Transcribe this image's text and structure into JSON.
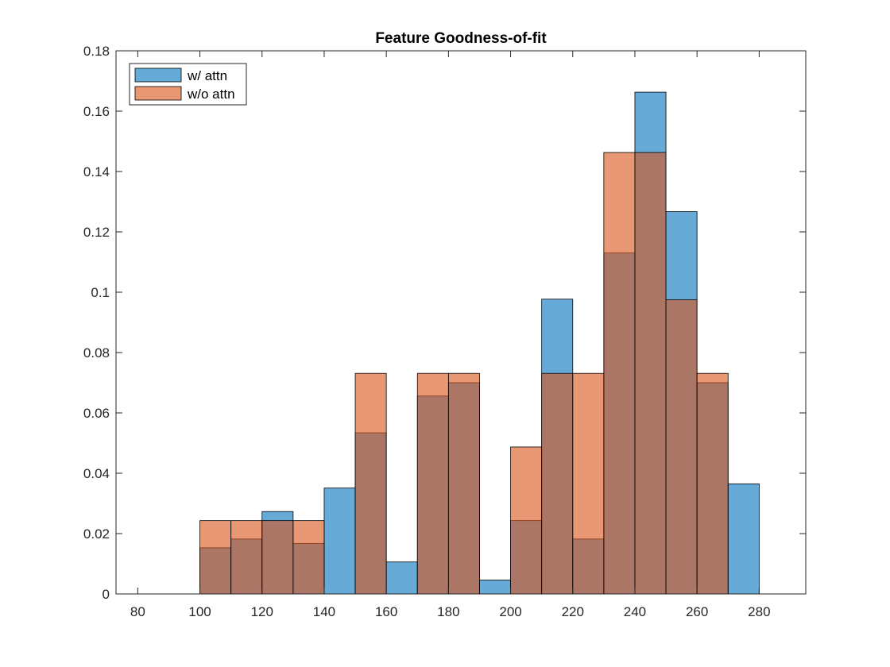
{
  "chart_data": {
    "type": "bar",
    "title": "Feature Goodness-of-fit",
    "xlabel": "",
    "ylabel": "",
    "xlim": [
      73,
      295
    ],
    "ylim": [
      0,
      0.18
    ],
    "xticks": [
      "80",
      "100",
      "120",
      "140",
      "160",
      "180",
      "200",
      "220",
      "240",
      "260",
      "280"
    ],
    "yticks": [
      "0",
      "0.02",
      "0.04",
      "0.06",
      "0.08",
      "0.1",
      "0.12",
      "0.14",
      "0.16",
      "0.18"
    ],
    "bin_edges": [
      100,
      110,
      120,
      130,
      140,
      150,
      160,
      170,
      180,
      190,
      200,
      210,
      220,
      230,
      240,
      250,
      260,
      270,
      280
    ],
    "legend_position": "top-left",
    "grid": false,
    "series": [
      {
        "name": "w/ attn",
        "color": "#0072BD",
        "values": [
          0.0153,
          0.0182,
          0.0273,
          0.0167,
          0.0351,
          0.0534,
          0.0106,
          0.0656,
          0.07,
          0.0046,
          0.0243,
          0.0977,
          0.0182,
          0.113,
          0.1663,
          0.1267,
          0.07,
          0.0365
        ]
      },
      {
        "name": "w/o attn",
        "color": "#D95319",
        "values": [
          0.0243,
          0.0243,
          0.0243,
          0.0243,
          0.0,
          0.0731,
          0.0,
          0.0731,
          0.0731,
          0.0,
          0.0487,
          0.0731,
          0.0731,
          0.1463,
          0.1463,
          0.0975,
          0.0731,
          0.0
        ]
      }
    ]
  }
}
